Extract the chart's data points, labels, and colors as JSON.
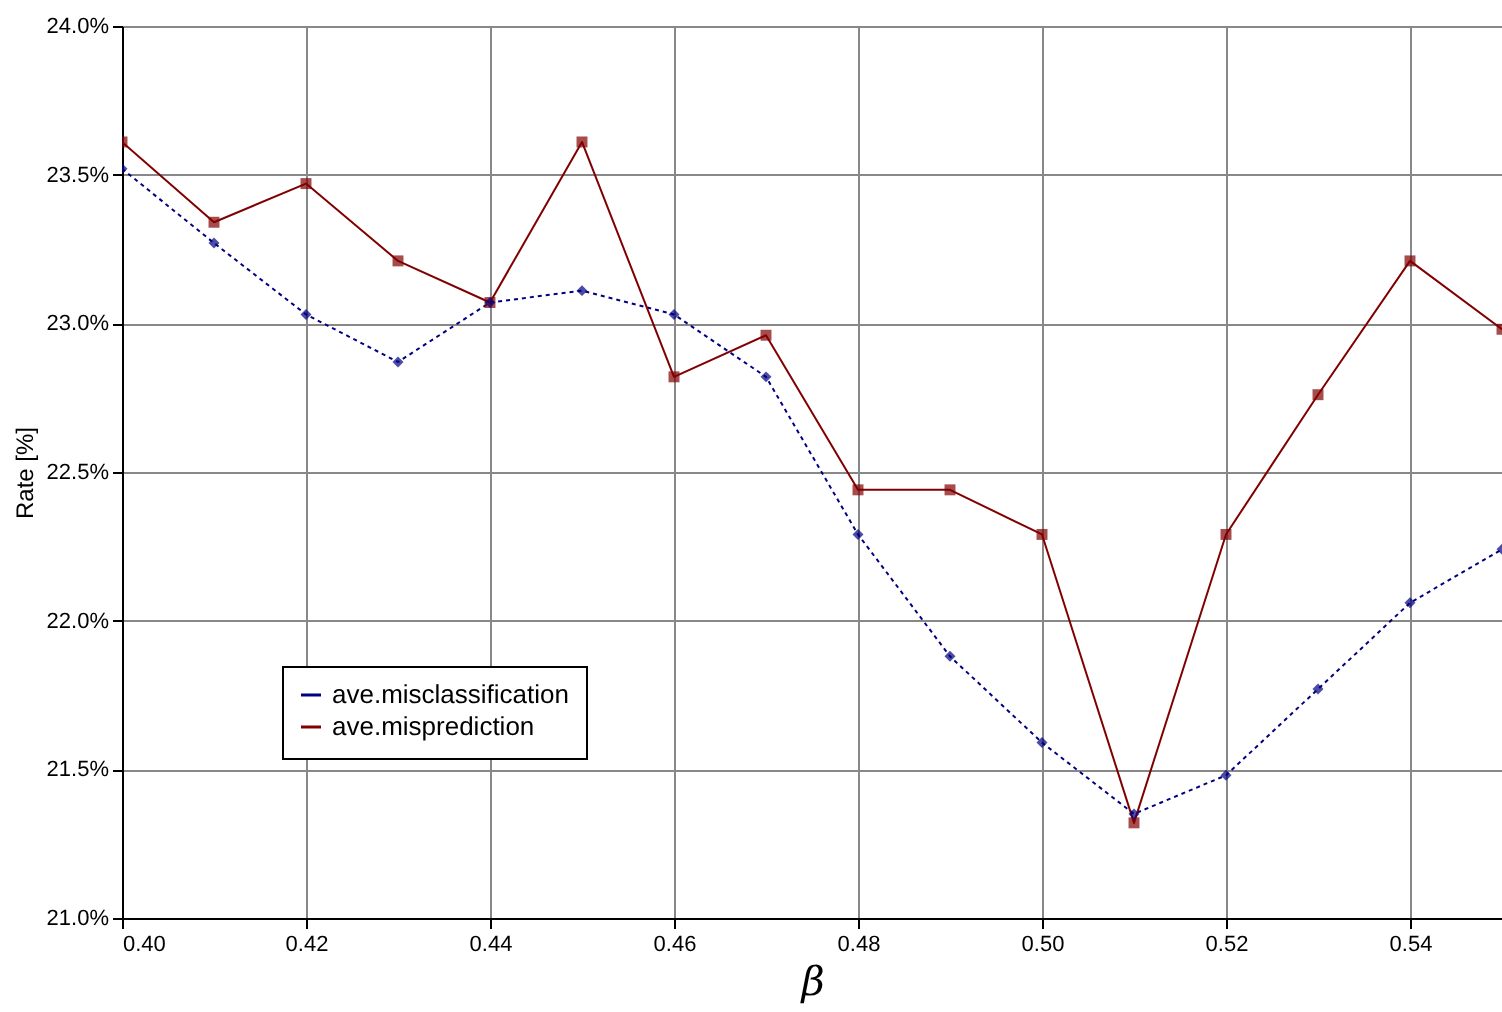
{
  "chart_data": {
    "type": "line",
    "xlabel": "β",
    "ylabel": "Rate [%]",
    "x": [
      0.4,
      0.41,
      0.42,
      0.43,
      0.44,
      0.45,
      0.46,
      0.47,
      0.48,
      0.49,
      0.5,
      0.51,
      0.52,
      0.53,
      0.54,
      0.55
    ],
    "series": [
      {
        "name": "ave.misclassification",
        "color": "#000080",
        "line_style": "dotted",
        "marker": "diamond",
        "values": [
          23.52,
          23.27,
          23.03,
          22.87,
          23.07,
          23.11,
          23.03,
          22.82,
          22.29,
          21.88,
          21.59,
          21.35,
          21.48,
          21.77,
          22.06,
          22.24
        ]
      },
      {
        "name": "ave.misprediction",
        "color": "#800000",
        "line_style": "solid",
        "marker": "square",
        "values": [
          23.61,
          23.34,
          23.47,
          23.21,
          23.07,
          23.61,
          22.82,
          22.96,
          22.44,
          22.44,
          22.29,
          21.32,
          22.29,
          22.76,
          23.21,
          22.98
        ]
      }
    ],
    "xlim": [
      0.4,
      0.55
    ],
    "xticks": [
      {
        "value": 0.4,
        "label": "0.40"
      },
      {
        "value": 0.42,
        "label": "0.42"
      },
      {
        "value": 0.44,
        "label": "0.44"
      },
      {
        "value": 0.46,
        "label": "0.46"
      },
      {
        "value": 0.48,
        "label": "0.48"
      },
      {
        "value": 0.5,
        "label": "0.50"
      },
      {
        "value": 0.52,
        "label": "0.52"
      },
      {
        "value": 0.54,
        "label": "0.54"
      }
    ],
    "ylim": [
      21.0,
      24.0
    ],
    "yticks": [
      {
        "value": 21.0,
        "label": "21.0%"
      },
      {
        "value": 21.5,
        "label": "21.5%"
      },
      {
        "value": 22.0,
        "label": "22.0%"
      },
      {
        "value": 22.5,
        "label": "22.5%"
      },
      {
        "value": 23.0,
        "label": "23.0%"
      },
      {
        "value": 23.5,
        "label": "23.5%"
      },
      {
        "value": 24.0,
        "label": "24.0%"
      }
    ],
    "grid": true,
    "legend": "bottom left"
  }
}
